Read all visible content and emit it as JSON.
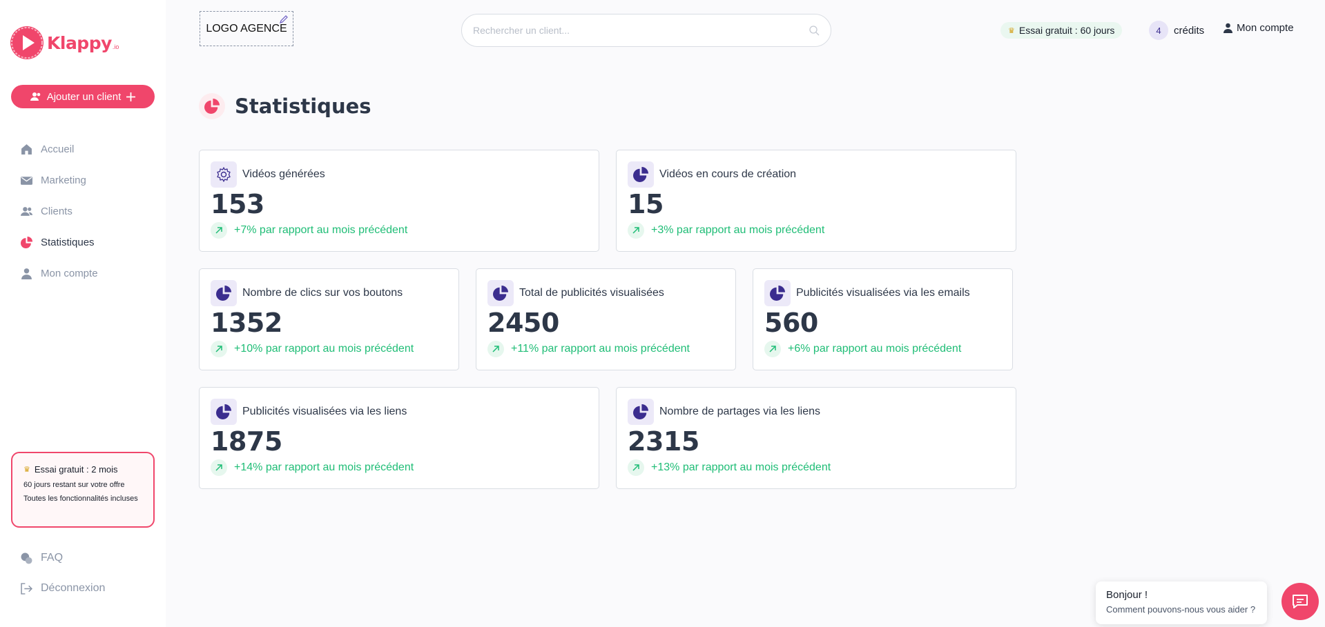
{
  "app": {
    "name": "Klappy",
    "name_suffix": ".io",
    "brand_color": "#f0466b",
    "accent_color": "#3b2d8f",
    "success_color": "#1fbd76"
  },
  "sidebar": {
    "add_client_label": "Ajouter un client",
    "items": [
      {
        "label": "Accueil",
        "icon": "home-icon"
      },
      {
        "label": "Marketing",
        "icon": "mail-icon"
      },
      {
        "label": "Clients",
        "icon": "users-icon"
      },
      {
        "label": "Statistiques",
        "icon": "pie-chart-icon",
        "active": true
      },
      {
        "label": "Mon compte",
        "icon": "user-icon"
      }
    ],
    "trial": {
      "title": "Essai gratuit : 2 mois",
      "line1": "60 jours restant sur votre offre",
      "line2": "Toutes les fonctionnalités incluses"
    },
    "bottom": [
      {
        "label": "FAQ",
        "icon": "faq-icon"
      },
      {
        "label": "Déconnexion",
        "icon": "logout-icon"
      }
    ]
  },
  "header": {
    "logo_agence": "LOGO AGENCE",
    "search_placeholder": "Rechercher un client...",
    "trial_badge": "Essai gratuit : 60 jours",
    "credits_count": "4",
    "credits_label": "crédits",
    "account_label": "Mon compte"
  },
  "page": {
    "title": "Statistiques"
  },
  "cards": [
    {
      "label": "Vidéos générées",
      "value": "153",
      "delta": "+7% par rapport au mois précédent",
      "icon": "gear-icon"
    },
    {
      "label": "Vidéos en cours de création",
      "value": "15",
      "delta": "+3% par rapport au mois précédent",
      "icon": "pie-chart-icon"
    },
    {
      "label": "Nombre de clics sur vos boutons",
      "value": "1352",
      "delta": "+10% par rapport au mois précédent",
      "icon": "pie-chart-icon"
    },
    {
      "label": "Total de publicités visualisées",
      "value": "2450",
      "delta": "+11% par rapport au mois précédent",
      "icon": "pie-chart-icon"
    },
    {
      "label": "Publicités visualisées via les emails",
      "value": "560",
      "delta": "+6% par rapport au mois précédent",
      "icon": "pie-chart-icon"
    },
    {
      "label": "Publicités visualisées via les liens",
      "value": "1875",
      "delta": "+14% par rapport au mois précédent",
      "icon": "pie-chart-icon"
    },
    {
      "label": "Nombre de partages via les liens",
      "value": "2315",
      "delta": "+13% par rapport au mois précédent",
      "icon": "pie-chart-icon"
    }
  ],
  "chat": {
    "title": "Bonjour !",
    "subtitle": "Comment pouvons-nous vous aider ?"
  }
}
